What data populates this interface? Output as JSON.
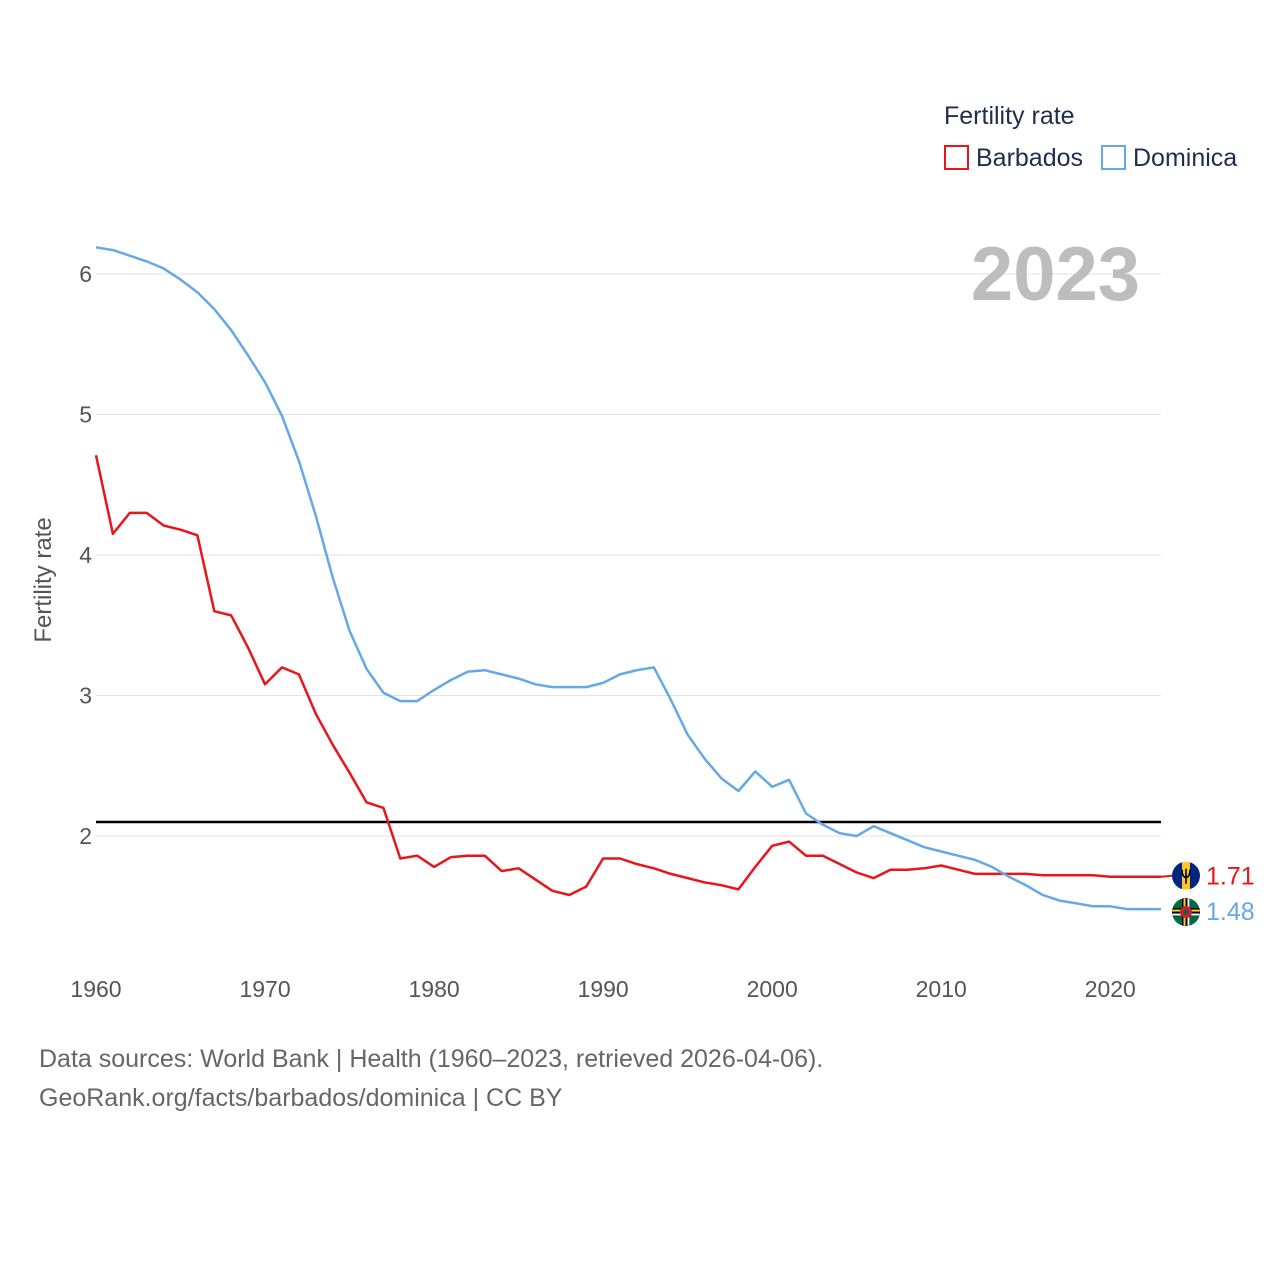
{
  "chart_data": {
    "type": "line",
    "year_label": "2023",
    "ylabel": "Fertility rate",
    "xlim": [
      1960,
      2023
    ],
    "ylim": [
      1.2,
      6.3
    ],
    "x_ticks": [
      1960,
      1970,
      1980,
      1990,
      2000,
      2010,
      2020
    ],
    "y_ticks": [
      2,
      3,
      4,
      5,
      6
    ],
    "grid": true,
    "legend": {
      "title": "Fertility rate",
      "position": "top-right",
      "items": [
        "Barbados",
        "Dominica"
      ]
    },
    "reference_line": {
      "value": 2.1,
      "color": "#000000"
    },
    "x": [
      1960,
      1961,
      1962,
      1963,
      1964,
      1965,
      1966,
      1967,
      1968,
      1969,
      1970,
      1971,
      1972,
      1973,
      1974,
      1975,
      1976,
      1977,
      1978,
      1979,
      1980,
      1981,
      1982,
      1983,
      1984,
      1985,
      1986,
      1987,
      1988,
      1989,
      1990,
      1991,
      1992,
      1993,
      1994,
      1995,
      1996,
      1997,
      1998,
      1999,
      2000,
      2001,
      2002,
      2003,
      2004,
      2005,
      2006,
      2007,
      2008,
      2009,
      2010,
      2011,
      2012,
      2013,
      2014,
      2015,
      2016,
      2017,
      2018,
      2019,
      2020,
      2021,
      2022,
      2023
    ],
    "series": [
      {
        "name": "Barbados",
        "color": "#e8161b",
        "end_label": "1.71",
        "values": [
          4.71,
          4.15,
          4.3,
          4.3,
          4.21,
          4.18,
          4.14,
          3.6,
          3.57,
          3.34,
          3.08,
          3.2,
          3.15,
          2.87,
          2.65,
          2.45,
          2.24,
          2.2,
          1.84,
          1.86,
          1.78,
          1.85,
          1.86,
          1.86,
          1.75,
          1.77,
          1.69,
          1.61,
          1.58,
          1.64,
          1.84,
          1.84,
          1.8,
          1.77,
          1.73,
          1.7,
          1.67,
          1.65,
          1.62,
          1.78,
          1.93,
          1.96,
          1.86,
          1.86,
          1.8,
          1.74,
          1.7,
          1.76,
          1.76,
          1.77,
          1.79,
          1.76,
          1.73,
          1.73,
          1.73,
          1.73,
          1.72,
          1.72,
          1.72,
          1.72,
          1.71,
          1.71,
          1.71,
          1.71
        ]
      },
      {
        "name": "Dominica",
        "color": "#64a9e6",
        "end_label": "1.48",
        "values": [
          6.19,
          6.17,
          6.13,
          6.09,
          6.04,
          5.96,
          5.87,
          5.75,
          5.6,
          5.42,
          5.23,
          4.99,
          4.67,
          4.28,
          3.84,
          3.46,
          3.19,
          3.02,
          2.96,
          2.96,
          3.04,
          3.11,
          3.17,
          3.18,
          3.15,
          3.12,
          3.08,
          3.06,
          3.06,
          3.06,
          3.09,
          3.15,
          3.18,
          3.2,
          2.97,
          2.72,
          2.55,
          2.41,
          2.32,
          2.46,
          2.35,
          2.4,
          2.16,
          2.08,
          2.02,
          2.0,
          2.07,
          2.02,
          1.97,
          1.92,
          1.89,
          1.86,
          1.83,
          1.78,
          1.71,
          1.65,
          1.58,
          1.54,
          1.52,
          1.5,
          1.5,
          1.48,
          1.48,
          1.48
        ]
      }
    ]
  },
  "footer": {
    "line1": "Data sources: World Bank | Health (1960–2023, retrieved 2026-04-06).",
    "line2": "GeoRank.org/facts/barbados/dominica | CC BY"
  }
}
